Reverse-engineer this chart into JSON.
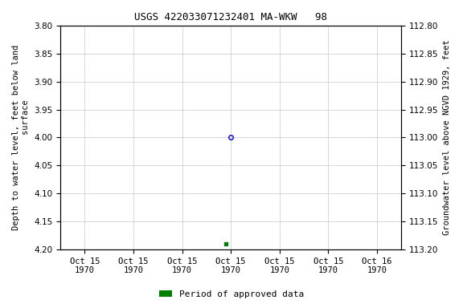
{
  "title": "USGS 422033071232401 MA-WKW   98",
  "ylabel_left": "Depth to water level, feet below land\n        surface",
  "ylabel_right": "Groundwater level above NGVD 1929, feet",
  "ylim_left": [
    3.8,
    4.2
  ],
  "ylim_right": [
    113.2,
    112.8
  ],
  "yticks_left": [
    3.8,
    3.85,
    3.9,
    3.95,
    4.0,
    4.05,
    4.1,
    4.15,
    4.2
  ],
  "yticks_right": [
    113.2,
    113.15,
    113.1,
    113.05,
    113.0,
    112.95,
    112.9,
    112.85,
    112.8
  ],
  "circle_value": 4.0,
  "square_value": 4.19,
  "legend_label": "Period of approved data",
  "legend_color": "#008000",
  "circle_color": "#0000cc",
  "grid_color": "#c8c8c8",
  "background_color": "#ffffff",
  "title_fontsize": 9,
  "axis_fontsize": 7.5,
  "tick_fontsize": 7.5,
  "n_xticks": 7
}
